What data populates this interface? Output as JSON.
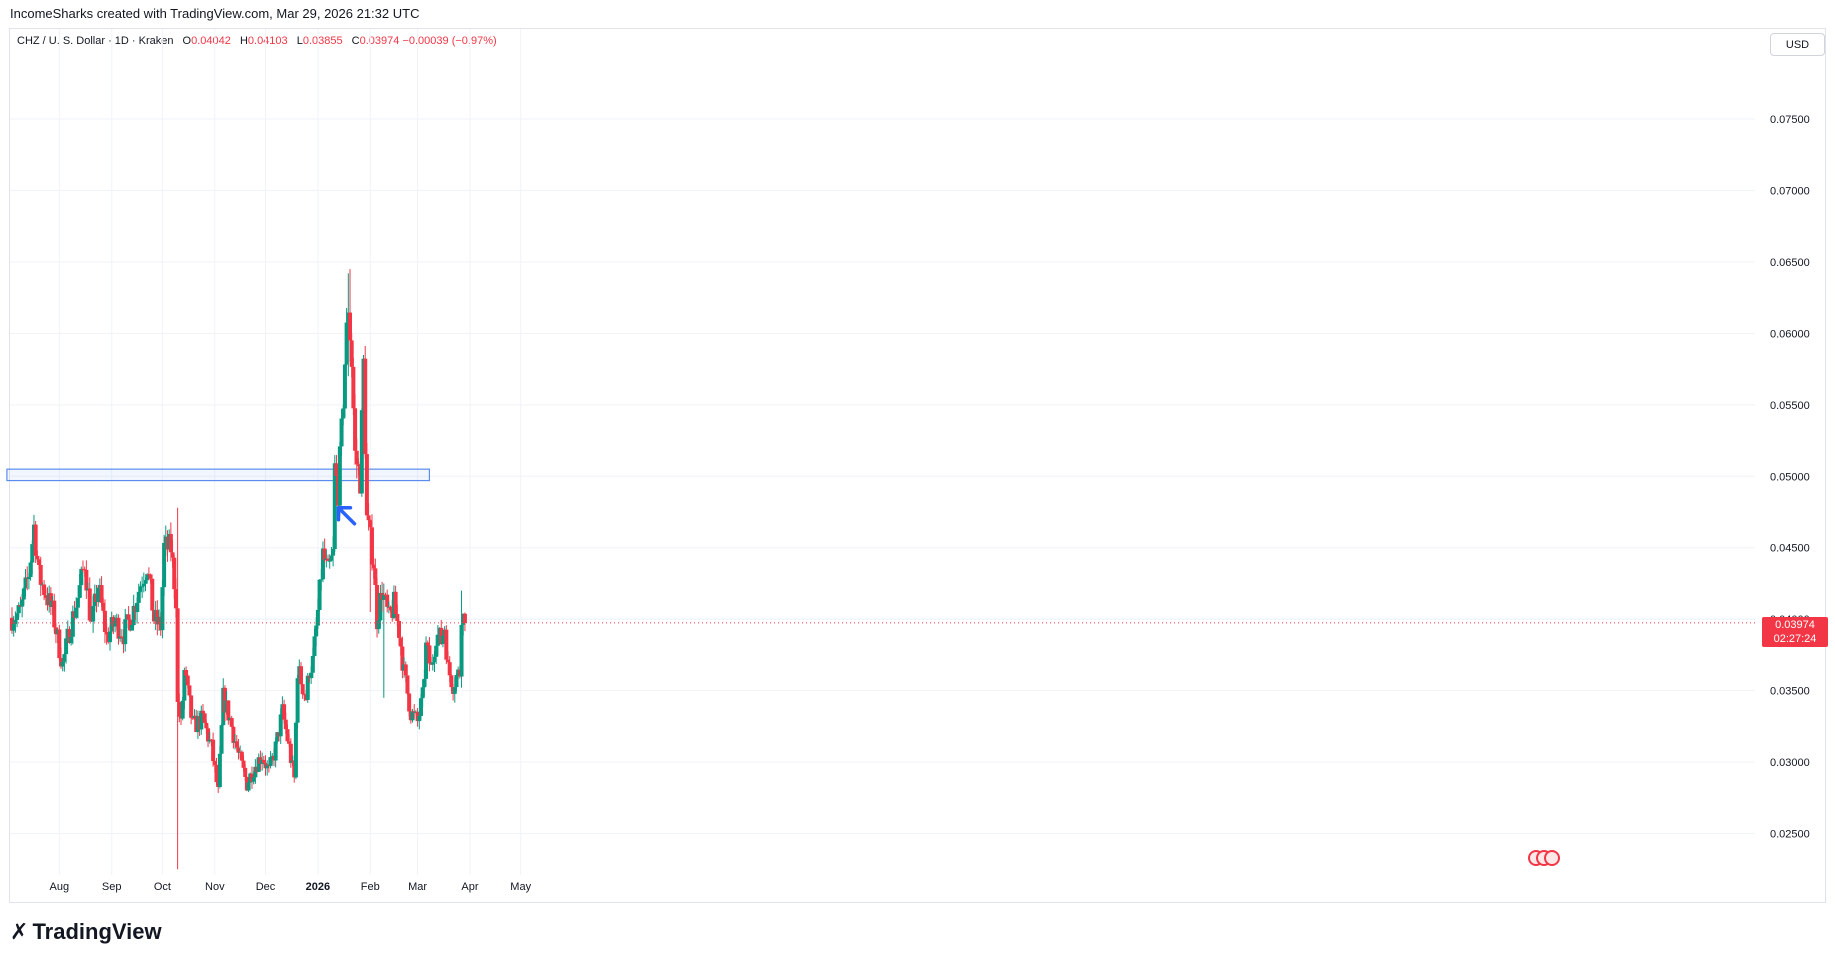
{
  "header": {
    "credit": "IncomeSharks created with TradingView.com, Mar 29, 2026 21:32 UTC"
  },
  "legend": {
    "symbol": "CHZ / U. S. Dollar · 1D · Kraken",
    "o_label": "O",
    "o_value": "0.04042",
    "h_label": "H",
    "h_value": "0.04103",
    "l_label": "L",
    "l_value": "0.03855",
    "c_label": "C",
    "c_value": "0.03974",
    "change": "−0.00039 (−0.97%)"
  },
  "currency_button": "USD",
  "price_tag": {
    "price": "0.03974",
    "countdown": "02:27:24"
  },
  "logo_text": "TradingView",
  "colors": {
    "up": "#089981",
    "down": "#f23645",
    "zone": "#5b8def",
    "arrow": "#2962ff"
  },
  "chart_data": {
    "type": "candlestick",
    "title": "CHZ / U. S. Dollar · 1D · Kraken",
    "y_ticks": [
      "0.07500",
      "0.07000",
      "0.06500",
      "0.06000",
      "0.05500",
      "0.05000",
      "0.04500",
      "0.04000",
      "0.03500",
      "0.03000",
      "0.02500"
    ],
    "y_tick_values": [
      0.075,
      0.07,
      0.065,
      0.06,
      0.055,
      0.05,
      0.045,
      0.04,
      0.035,
      0.03,
      0.025
    ],
    "ylim": [
      0.0221,
      0.0813
    ],
    "x_ticks": [
      {
        "label": "Aug",
        "x": "2025-08-01",
        "bold": false
      },
      {
        "label": "Sep",
        "x": "2025-09-01",
        "bold": false
      },
      {
        "label": "Oct",
        "x": "2025-10-01",
        "bold": false
      },
      {
        "label": "Nov",
        "x": "2025-11-01",
        "bold": false
      },
      {
        "label": "Dec",
        "x": "2025-12-01",
        "bold": false
      },
      {
        "label": "2026",
        "x": "2026-01-01",
        "bold": true
      },
      {
        "label": "Feb",
        "x": "2026-02-01",
        "bold": false
      },
      {
        "label": "Mar",
        "x": "2026-03-01",
        "bold": false
      },
      {
        "label": "Apr",
        "x": "2026-04-01",
        "bold": false
      },
      {
        "label": "May",
        "x": "2026-05-01",
        "bold": false
      }
    ],
    "start_date": "2025-07-04",
    "end_date": "2026-03-29",
    "last_price": 0.03974,
    "anchors": [
      [
        "2025-07-04",
        0.0401
      ],
      [
        "2025-07-09",
        0.0405
      ],
      [
        "2025-07-14",
        0.0432
      ],
      [
        "2025-07-17",
        0.0465
      ],
      [
        "2025-07-20",
        0.043
      ],
      [
        "2025-07-24",
        0.0418
      ],
      [
        "2025-07-28",
        0.0405
      ],
      [
        "2025-08-01",
        0.038
      ],
      [
        "2025-08-03",
        0.0368
      ],
      [
        "2025-08-07",
        0.0392
      ],
      [
        "2025-08-12",
        0.0415
      ],
      [
        "2025-08-16",
        0.044
      ],
      [
        "2025-08-20",
        0.0395
      ],
      [
        "2025-08-24",
        0.0424
      ],
      [
        "2025-08-29",
        0.0387
      ],
      [
        "2025-09-03",
        0.0398
      ],
      [
        "2025-09-08",
        0.039
      ],
      [
        "2025-09-13",
        0.0403
      ],
      [
        "2025-09-18",
        0.0425
      ],
      [
        "2025-09-22",
        0.0438
      ],
      [
        "2025-09-26",
        0.04
      ],
      [
        "2025-09-30",
        0.0395
      ],
      [
        "2025-10-02",
        0.045
      ],
      [
        "2025-10-06",
        0.045
      ],
      [
        "2025-10-09",
        0.0415
      ],
      [
        "2025-10-10",
        0.034
      ],
      [
        "2025-10-12",
        0.0325
      ],
      [
        "2025-10-14",
        0.0363
      ],
      [
        "2025-10-19",
        0.0325
      ],
      [
        "2025-10-25",
        0.033
      ],
      [
        "2025-10-30",
        0.031
      ],
      [
        "2025-11-03",
        0.0278
      ],
      [
        "2025-11-06",
        0.0345
      ],
      [
        "2025-11-10",
        0.033
      ],
      [
        "2025-11-15",
        0.0305
      ],
      [
        "2025-11-20",
        0.0285
      ],
      [
        "2025-11-25",
        0.0298
      ],
      [
        "2025-11-29",
        0.0305
      ],
      [
        "2025-12-03",
        0.0293
      ],
      [
        "2025-12-07",
        0.031
      ],
      [
        "2025-12-11",
        0.0335
      ],
      [
        "2025-12-15",
        0.031
      ],
      [
        "2025-12-18",
        0.0288
      ],
      [
        "2025-12-20",
        0.0365
      ],
      [
        "2025-12-25",
        0.0345
      ],
      [
        "2025-12-27",
        0.0365
      ],
      [
        "2025-12-29",
        0.037
      ],
      [
        "2026-01-01",
        0.0405
      ],
      [
        "2026-01-04",
        0.0445
      ],
      [
        "2026-01-07",
        0.0432
      ],
      [
        "2026-01-10",
        0.0445
      ],
      [
        "2026-01-11",
        0.0505
      ],
      [
        "2026-01-13",
        0.049
      ],
      [
        "2026-01-15",
        0.053
      ],
      [
        "2026-01-17",
        0.058
      ],
      [
        "2026-01-19",
        0.062
      ],
      [
        "2026-01-21",
        0.058
      ],
      [
        "2026-01-23",
        0.0515
      ],
      [
        "2026-01-26",
        0.0498
      ],
      [
        "2026-01-28",
        0.0578
      ],
      [
        "2026-01-30",
        0.047
      ],
      [
        "2026-02-03",
        0.044
      ],
      [
        "2026-02-05",
        0.04
      ],
      [
        "2026-02-08",
        0.042
      ],
      [
        "2026-02-12",
        0.04
      ],
      [
        "2026-02-15",
        0.041
      ],
      [
        "2026-02-18",
        0.0392
      ],
      [
        "2026-02-21",
        0.0362
      ],
      [
        "2026-02-25",
        0.0335
      ],
      [
        "2026-03-01",
        0.0328
      ],
      [
        "2026-03-04",
        0.0345
      ],
      [
        "2026-03-06",
        0.038
      ],
      [
        "2026-03-09",
        0.0365
      ],
      [
        "2026-03-12",
        0.039
      ],
      [
        "2026-03-15",
        0.0385
      ],
      [
        "2026-03-17",
        0.0395
      ],
      [
        "2026-03-19",
        0.0365
      ],
      [
        "2026-03-22",
        0.0355
      ],
      [
        "2026-03-24",
        0.036
      ],
      [
        "2026-03-26",
        0.0363
      ],
      [
        "2026-03-27",
        0.0405
      ],
      [
        "2026-03-29",
        0.0397
      ]
    ],
    "wicks": [
      {
        "date": "2025-10-10",
        "low": 0.0225,
        "high": 0.0478
      },
      {
        "date": "2026-01-19",
        "low": 0.057,
        "high": 0.0642
      },
      {
        "date": "2026-01-20",
        "low": 0.058,
        "high": 0.0645
      },
      {
        "date": "2026-02-01",
        "low": 0.0405,
        "high": 0.0458
      },
      {
        "date": "2026-02-09",
        "low": 0.0345,
        "high": 0.0425
      },
      {
        "date": "2026-03-27",
        "low": 0.0352,
        "high": 0.042
      }
    ],
    "zone": {
      "from": "2025-07-01",
      "to": "2026-03-08",
      "low": 0.0497,
      "high": 0.0505
    },
    "arrow": {
      "date": "2026-01-12",
      "price": 0.0478
    }
  }
}
